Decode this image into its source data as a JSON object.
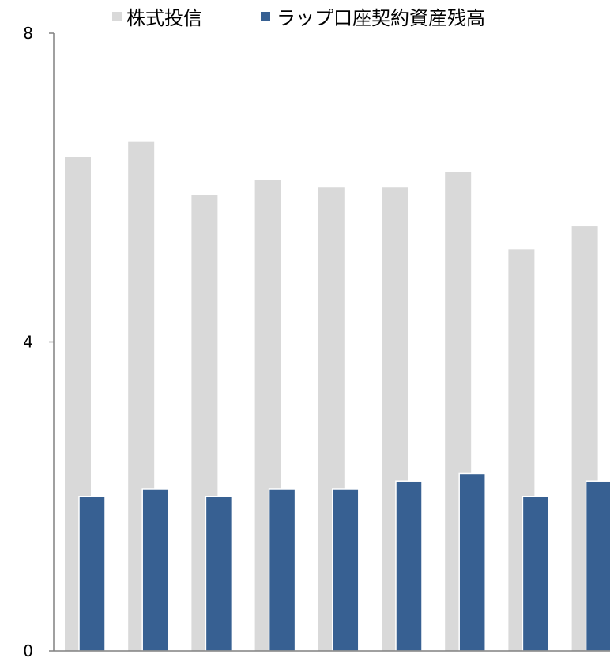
{
  "chart_data": {
    "type": "bar",
    "categories": [
      "",
      "",
      "",
      "",
      "",
      "",
      "",
      "",
      ""
    ],
    "series": [
      {
        "name": "株式投信",
        "color": "#d9d9d9",
        "values": [
          6.4,
          6.6,
          5.9,
          6.1,
          6.0,
          6.0,
          6.2,
          5.2,
          5.5
        ]
      },
      {
        "name": "ラップ口座契約資産残高",
        "color": "#376092",
        "values": [
          2.0,
          2.1,
          2.0,
          2.1,
          2.1,
          2.2,
          2.3,
          2.0,
          2.2
        ]
      }
    ],
    "ylim": [
      0,
      8
    ],
    "yticks": [
      "0",
      "4",
      "8"
    ],
    "legend": "top",
    "grid": false
  }
}
